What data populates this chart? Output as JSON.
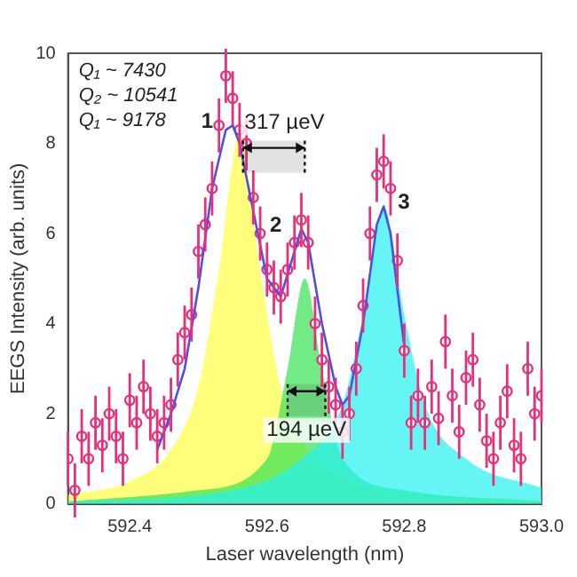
{
  "chart_data": {
    "type": "scatter",
    "xlabel": "Laser wavelength (nm)",
    "ylabel": "EEGS Intensity (arb. units)",
    "xlim": [
      592.31,
      593.0
    ],
    "xticks": [
      592.4,
      592.6,
      592.8,
      {
        "value": 593,
        "label": "593.0"
      }
    ],
    "ylim": [
      0,
      10
    ],
    "yticks": [
      0,
      2,
      4,
      6,
      8,
      10
    ],
    "grid": false,
    "legend": false,
    "series": [
      {
        "type": "area",
        "color": "#ffff40",
        "x": [
          592.31,
          592.4,
          592.46,
          592.5,
          592.53,
          592.56,
          592.59,
          592.62,
          592.66,
          592.72,
          592.8,
          592.9,
          593.0
        ],
        "values": [
          0.2,
          0.5,
          1.2,
          2.6,
          5.2,
          8.2,
          5.2,
          2.6,
          1.2,
          0.5,
          0.25,
          0.15,
          0.1
        ]
      },
      {
        "type": "area",
        "color": "#33e050",
        "x": [
          592.31,
          592.5,
          592.6,
          592.63,
          592.655,
          592.68,
          592.71,
          592.8,
          593.0
        ],
        "values": [
          0.05,
          0.3,
          1.0,
          3.0,
          5.0,
          3.0,
          1.0,
          0.3,
          0.05
        ]
      },
      {
        "type": "area",
        "color": "#20f0f0",
        "x": [
          592.31,
          592.55,
          592.65,
          592.71,
          592.74,
          592.77,
          592.8,
          592.83,
          592.89,
          593.0
        ],
        "values": [
          0.05,
          0.3,
          1.0,
          2.2,
          4.2,
          6.6,
          4.2,
          2.2,
          1.0,
          0.35
        ]
      },
      {
        "color": "#e8307a",
        "marker": "circle",
        "x": [
          592.31,
          592.32,
          592.33,
          592.34,
          592.35,
          592.36,
          592.37,
          592.38,
          592.39,
          592.4,
          592.41,
          592.42,
          592.43,
          592.44,
          592.45,
          592.46,
          592.47,
          592.48,
          592.49,
          592.5,
          592.51,
          592.52,
          592.53,
          592.54,
          592.55,
          592.56,
          592.57,
          592.58,
          592.59,
          592.6,
          592.61,
          592.62,
          592.63,
          592.64,
          592.65,
          592.66,
          592.67,
          592.68,
          592.69,
          592.7,
          592.71,
          592.72,
          592.73,
          592.74,
          592.75,
          592.76,
          592.77,
          592.78,
          592.79,
          592.8,
          592.81,
          592.82,
          592.83,
          592.84,
          592.85,
          592.86,
          592.87,
          592.88,
          592.89,
          592.9,
          592.91,
          592.92,
          592.93,
          592.94,
          592.95,
          592.96,
          592.97,
          592.98,
          592.99,
          593.0
        ],
        "values": [
          1.0,
          0.3,
          1.5,
          1.0,
          1.8,
          1.3,
          2.0,
          1.5,
          1.0,
          2.3,
          1.8,
          2.6,
          2.0,
          1.5,
          1.8,
          2.2,
          3.2,
          3.8,
          4.2,
          5.6,
          6.2,
          7.0,
          8.4,
          9.5,
          9.0,
          8.3,
          8.0,
          6.8,
          6.0,
          5.2,
          4.8,
          4.6,
          5.2,
          5.8,
          6.3,
          5.8,
          4.0,
          3.2,
          2.6,
          2.2,
          1.6,
          2.0,
          3.0,
          4.4,
          6.0,
          7.3,
          7.6,
          7.0,
          5.4,
          3.4,
          1.8,
          2.4,
          1.8,
          2.6,
          1.9,
          3.6,
          2.4,
          1.6,
          2.8,
          3.2,
          2.2,
          1.4,
          1.0,
          1.8,
          2.5,
          1.3,
          1.0,
          3.0,
          2.0,
          2.4
        ],
        "errors": [
          0.6,
          0.6,
          0.6,
          0.6,
          0.6,
          0.6,
          0.6,
          0.6,
          0.6,
          0.6,
          0.6,
          0.6,
          0.6,
          0.6,
          0.6,
          0.6,
          0.6,
          0.6,
          0.6,
          0.6,
          0.6,
          0.6,
          0.6,
          0.6,
          0.6,
          0.6,
          0.6,
          0.6,
          0.6,
          0.6,
          0.6,
          0.6,
          0.6,
          0.6,
          0.6,
          0.6,
          0.6,
          0.6,
          0.6,
          0.6,
          0.6,
          0.6,
          0.6,
          0.6,
          0.6,
          0.6,
          0.6,
          0.6,
          0.6,
          0.6,
          0.6,
          0.6,
          0.6,
          0.6,
          0.6,
          0.6,
          0.6,
          0.6,
          0.6,
          0.6,
          0.6,
          0.6,
          0.6,
          0.6,
          0.6,
          0.6,
          0.6,
          0.6,
          0.6,
          0.6
        ]
      },
      {
        "type": "line",
        "color": "#5050e0",
        "marker": "none",
        "line_style": "solid",
        "x": [
          592.44,
          592.46,
          592.48,
          592.5,
          592.52,
          592.54,
          592.55,
          592.56,
          592.58,
          592.6,
          592.62,
          592.64,
          592.65,
          592.66,
          592.68,
          592.7,
          592.71,
          592.72,
          592.74,
          592.76,
          592.77,
          592.78,
          592.8
        ],
        "values": [
          1.2,
          2.0,
          3.0,
          4.8,
          7.0,
          8.3,
          8.4,
          8.0,
          6.5,
          5.0,
          4.6,
          5.6,
          6.1,
          5.8,
          4.0,
          2.6,
          2.2,
          2.4,
          4.0,
          6.2,
          6.6,
          6.0,
          3.5
        ]
      }
    ],
    "annotations": [
      "Q₁ ~ 7430",
      "Q₂ ~ 10541",
      "Q₁ ~ 9178",
      {
        "text": "1",
        "x": 592.55,
        "y": 8.4
      },
      {
        "text": "2",
        "x": 592.65,
        "y": 6.1
      },
      {
        "text": "3",
        "x": 592.77,
        "y": 6.6
      }
    ],
    "bands": [
      {
        "axis": "x",
        "from": 592.565,
        "to": 592.655,
        "label": "317 µeV"
      },
      {
        "axis": "x",
        "from": 592.63,
        "to": 592.685,
        "label": "194 µeV"
      }
    ]
  }
}
